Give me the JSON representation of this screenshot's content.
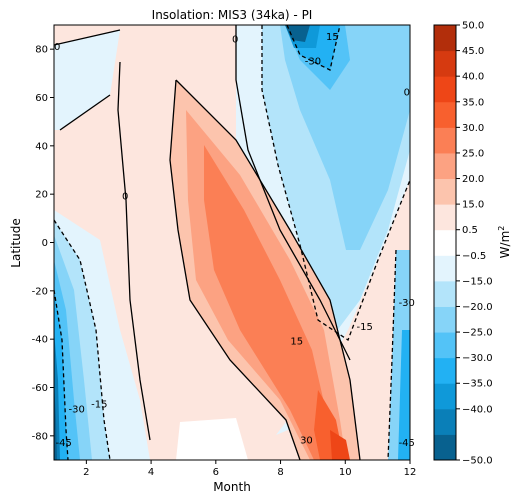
{
  "chart_data": {
    "type": "contour",
    "title": "Insolation: MIS3 (34ka) - PI",
    "xlabel": "Month",
    "ylabel": "Latitude",
    "xlim": [
      1,
      12
    ],
    "ylim": [
      -90,
      90
    ],
    "xticks": [
      2,
      4,
      6,
      8,
      10,
      12
    ],
    "yticks": [
      -80,
      -60,
      -40,
      -20,
      0,
      20,
      40,
      60,
      80
    ],
    "colorbar": {
      "label": "W/m",
      "label_sup": "2",
      "levels": [
        -50.0,
        -45.0,
        -40.0,
        -35.0,
        -30.0,
        -25.0,
        -20.0,
        -15.0,
        -0.5,
        0.5,
        15.0,
        20.0,
        25.0,
        30.0,
        35.0,
        40.0,
        45.0,
        50.0
      ],
      "tick_labels": [
        "−50.0",
        "−40.0",
        "−35.0",
        "−30.0",
        "−25.0",
        "−20.0",
        "−15.0",
        "−0.5",
        "0.5",
        "15.0",
        "20.0",
        "25.0",
        "30.0",
        "35.0",
        "40.0",
        "45.0",
        "50.0"
      ],
      "tick_values": [
        -50,
        -40,
        -35,
        -30,
        -25,
        -20,
        -15,
        -0.5,
        0.5,
        15,
        20,
        25,
        30,
        35,
        40,
        45,
        50
      ],
      "colors": [
        "#08618f",
        "#0a7fb8",
        "#0f99d9",
        "#22b1f3",
        "#53c3f7",
        "#86d4f8",
        "#b3e4fa",
        "#e3f4fd",
        "#ffffff",
        "#fde6de",
        "#fcc4ad",
        "#fca282",
        "#fb7f55",
        "#f8602e",
        "#ee4617",
        "#d63a10",
        "#b22e0b"
      ]
    },
    "contour_labels": [
      {
        "text": "0",
        "month": 1.1,
        "lat": 81
      },
      {
        "text": "0",
        "month": 3.2,
        "lat": 19
      },
      {
        "text": "0",
        "month": 6.6,
        "lat": 84
      },
      {
        "text": "0",
        "month": 11.9,
        "lat": 62
      },
      {
        "text": "15",
        "month": 9.6,
        "lat": 85
      },
      {
        "text": "-30",
        "month": 9.0,
        "lat": 75
      },
      {
        "text": "-15",
        "month": 10.6,
        "lat": -35
      },
      {
        "text": "-30",
        "month": 11.9,
        "lat": -25
      },
      {
        "text": "15",
        "month": 8.5,
        "lat": -41
      },
      {
        "text": "-30",
        "month": 1.7,
        "lat": -69
      },
      {
        "text": "-15",
        "month": 2.4,
        "lat": -67
      },
      {
        "text": "-45",
        "month": 1.3,
        "lat": -83
      },
      {
        "text": "30",
        "month": 8.8,
        "lat": -82
      },
      {
        "text": "-45",
        "month": 11.9,
        "lat": -83
      }
    ]
  }
}
